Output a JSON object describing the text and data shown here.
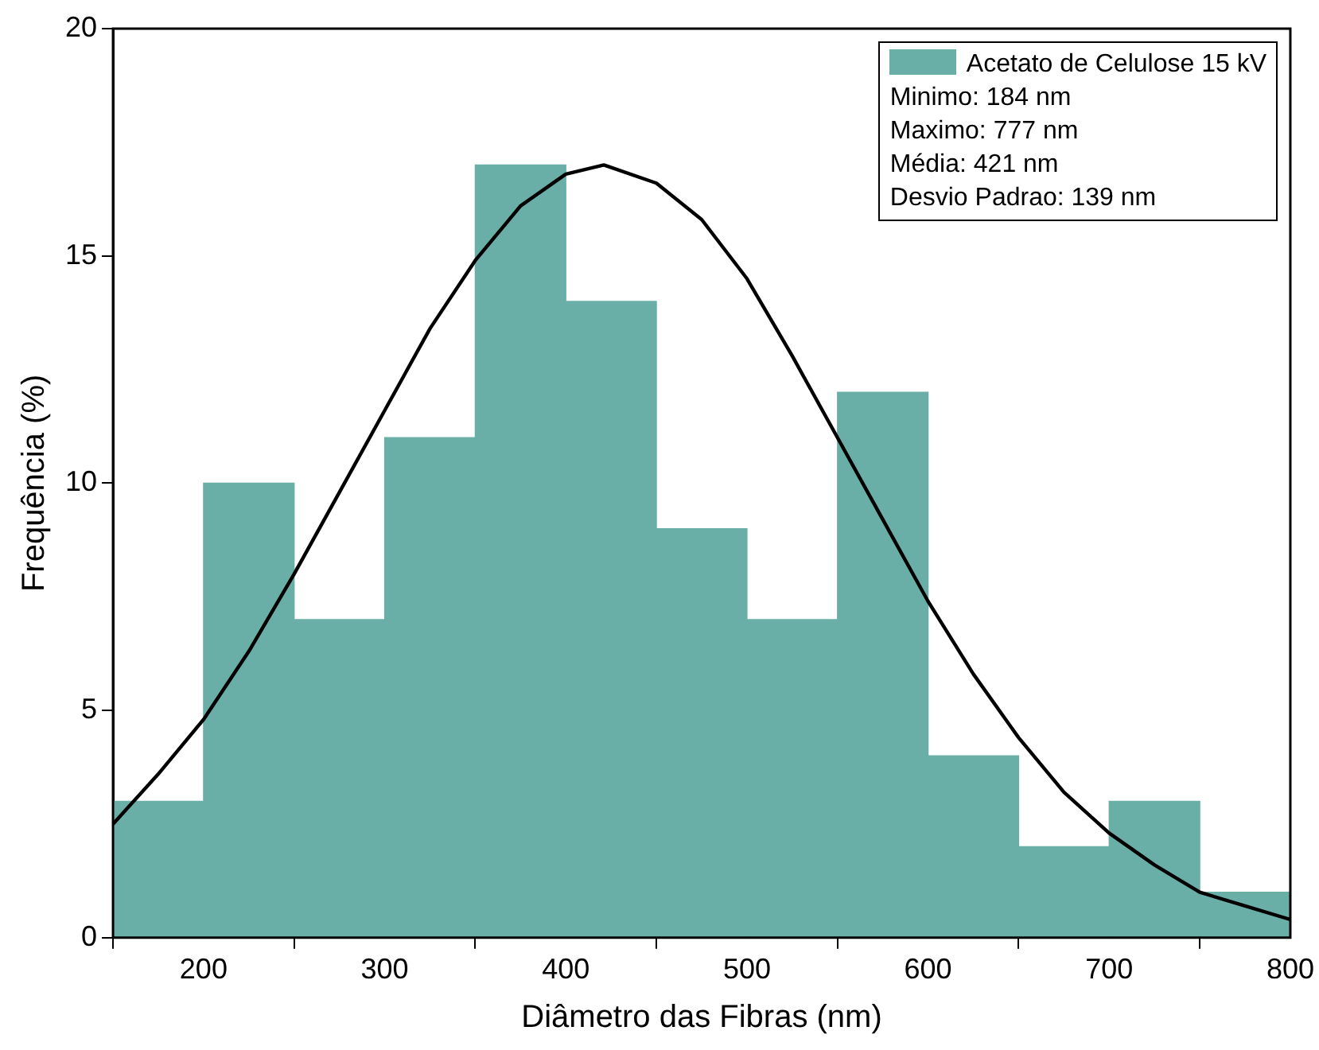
{
  "chart_data": {
    "type": "histogram",
    "xlabel": "Diâmetro das Fibras (nm)",
    "ylabel": "Frequência (%)",
    "xlim": [
      150,
      800
    ],
    "xticks": [
      200,
      300,
      400,
      500,
      600,
      700,
      800
    ],
    "ylim": [
      0,
      20
    ],
    "yticks": [
      0,
      5,
      10,
      15,
      20
    ],
    "grid": false,
    "legend": "top right",
    "annotations": [
      "Minimo: 184 nm",
      "Maximo: 777 nm",
      "Média: 421 nm",
      "Desvio Padrao: 139 nm"
    ],
    "series": [
      {
        "name": "Acetato de Celulose 15 kV",
        "color": "#6aaea8",
        "bins": [
          150,
          200,
          250,
          300,
          350,
          400,
          450,
          500,
          550,
          600,
          650,
          700,
          750,
          800
        ],
        "values": [
          3,
          10,
          7,
          11,
          17,
          14,
          9,
          7,
          12,
          4,
          2,
          3,
          1
        ]
      },
      {
        "type": "line",
        "color": "#000000",
        "marker": "none",
        "line_style": "solid",
        "x": [
          150,
          175,
          200,
          225,
          250,
          275,
          300,
          325,
          350,
          375,
          400,
          421,
          450,
          475,
          500,
          525,
          550,
          575,
          600,
          625,
          650,
          675,
          700,
          725,
          750,
          775,
          800
        ],
        "values": [
          2.5,
          3.6,
          4.8,
          6.3,
          8.0,
          9.8,
          11.6,
          13.4,
          14.9,
          16.1,
          16.8,
          17,
          16.6,
          15.8,
          14.5,
          12.8,
          11.0,
          9.2,
          7.4,
          5.8,
          4.4,
          3.2,
          2.3,
          1.6,
          1.0,
          0.7,
          0.4
        ]
      }
    ]
  }
}
